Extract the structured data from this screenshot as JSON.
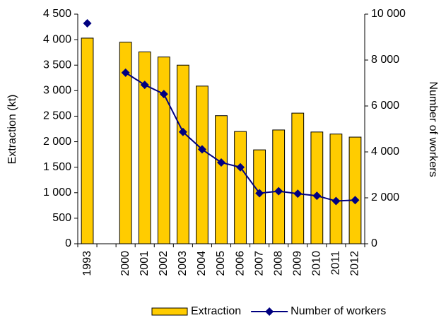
{
  "chart_data": {
    "type": "bar-line",
    "categories": [
      "1993",
      null,
      "2000",
      "2001",
      "2002",
      "2003",
      "2004",
      "2005",
      "2006",
      "2007",
      "2008",
      "2009",
      "2010",
      "2011",
      "2012"
    ],
    "y_label": "Extraction (kt)",
    "y2_label": "Number of workers",
    "ylim": [
      0,
      4500
    ],
    "yticks": [
      0,
      500,
      {
        "value": 1000,
        "label": "1 000"
      },
      {
        "value": 1500,
        "label": "1 500"
      },
      {
        "value": 2000,
        "label": "2 000"
      },
      {
        "value": 2500,
        "label": "2 500"
      },
      {
        "value": 3000,
        "label": "3 000"
      },
      {
        "value": 3500,
        "label": "3 500"
      },
      {
        "value": 4000,
        "label": "4 000"
      },
      {
        "value": 4500,
        "label": "4 500"
      }
    ],
    "y2lim": [
      0,
      10000
    ],
    "y2ticks": [
      0,
      {
        "value": 2000,
        "label": "2 000"
      },
      {
        "value": 4000,
        "label": "4 000"
      },
      {
        "value": 6000,
        "label": "6 000"
      },
      {
        "value": 8000,
        "label": "8 000"
      },
      {
        "value": 10000,
        "label": "10 000"
      }
    ],
    "grid": false,
    "legend": "bottom",
    "series": [
      {
        "name": "Extraction",
        "type": "bar",
        "color": "#ffcc00",
        "values": [
          4030,
          null,
          3950,
          3760,
          3660,
          3500,
          3090,
          2510,
          2200,
          1840,
          2230,
          2560,
          2190,
          2150,
          2090
        ]
      },
      {
        "name": "Number of workers",
        "type": "line",
        "axis": "y2",
        "color": "#000080",
        "values": [
          9600,
          null,
          7450,
          6920,
          6520,
          4870,
          4110,
          3540,
          3330,
          2200,
          2290,
          2180,
          2090,
          1860,
          1900
        ]
      }
    ]
  }
}
